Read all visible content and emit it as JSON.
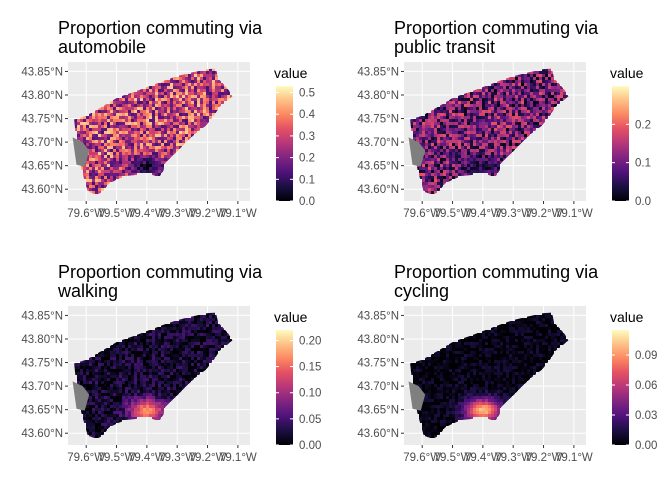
{
  "colors": {
    "panel_bg": "#EBEBEB",
    "grid": "#FFFFFF",
    "tick_text": "#4D4D4D",
    "title_text": "#000000",
    "na_gray": "#7F7F7F",
    "scale_low": "#000004",
    "scale_high": "#FCFDBF"
  },
  "chart_data": [
    {
      "type": "heatmap",
      "title": "Proportion commuting via\nautomobile",
      "legend_title": "value",
      "x_ticks": [
        "79.6°W",
        "79.5°W",
        "79.4°W",
        "79.3°W",
        "79.2°W",
        "79.1°W"
      ],
      "x_values": [
        -79.6,
        -79.5,
        -79.4,
        -79.3,
        -79.2,
        -79.1
      ],
      "y_ticks": [
        "43.85°N",
        "43.80°N",
        "43.75°N",
        "43.70°N",
        "43.65°N",
        "43.60°N"
      ],
      "y_values": [
        43.85,
        43.8,
        43.75,
        43.7,
        43.65,
        43.6
      ],
      "xlim": [
        -79.66,
        -79.06
      ],
      "ylim": [
        43.575,
        43.87
      ],
      "legend_labels": [
        "0.5",
        "0.4",
        "0.3",
        "0.2",
        "0.1",
        "0.0"
      ],
      "legend_values": [
        0.5,
        0.4,
        0.3,
        0.2,
        0.1,
        0.0
      ],
      "legend_range": [
        0.0,
        0.53
      ],
      "mean_value": 0.3,
      "spread": 0.18,
      "hotspot_value": 0.05
    },
    {
      "type": "heatmap",
      "title": "Proportion commuting via\npublic transit",
      "legend_title": "value",
      "x_ticks": [
        "79.6°W",
        "79.5°W",
        "79.4°W",
        "79.3°W",
        "79.2°W",
        "79.1°W"
      ],
      "x_values": [
        -79.6,
        -79.5,
        -79.4,
        -79.3,
        -79.2,
        -79.1
      ],
      "y_ticks": [
        "43.85°N",
        "43.80°N",
        "43.75°N",
        "43.70°N",
        "43.65°N",
        "43.60°N"
      ],
      "y_values": [
        43.85,
        43.8,
        43.75,
        43.7,
        43.65,
        43.6
      ],
      "xlim": [
        -79.66,
        -79.06
      ],
      "ylim": [
        43.575,
        43.87
      ],
      "legend_labels": [
        "0.2",
        "0.1",
        "0.0"
      ],
      "legend_values": [
        0.2,
        0.1,
        0.0
      ],
      "legend_range": [
        0.0,
        0.3
      ],
      "mean_value": 0.1,
      "spread": 0.09,
      "hotspot_value": 0.04
    },
    {
      "type": "heatmap",
      "title": "Proportion commuting via\nwalking",
      "legend_title": "value",
      "x_ticks": [
        "79.6°W",
        "79.5°W",
        "79.4°W",
        "79.3°W",
        "79.2°W",
        "79.1°W"
      ],
      "x_values": [
        -79.6,
        -79.5,
        -79.4,
        -79.3,
        -79.2,
        -79.1
      ],
      "y_ticks": [
        "43.85°N",
        "43.80°N",
        "43.75°N",
        "43.70°N",
        "43.65°N",
        "43.60°N"
      ],
      "y_values": [
        43.85,
        43.8,
        43.75,
        43.7,
        43.65,
        43.6
      ],
      "xlim": [
        -79.66,
        -79.06
      ],
      "ylim": [
        43.575,
        43.87
      ],
      "legend_labels": [
        "0.20",
        "0.15",
        "0.10",
        "0.05",
        "0.00"
      ],
      "legend_values": [
        0.2,
        0.15,
        0.1,
        0.05,
        0.0
      ],
      "legend_range": [
        0.0,
        0.22
      ],
      "mean_value": 0.02,
      "spread": 0.03,
      "hotspot_value": 0.17
    },
    {
      "type": "heatmap",
      "title": "Proportion commuting via\ncycling",
      "legend_title": "value",
      "x_ticks": [
        "79.6°W",
        "79.5°W",
        "79.4°W",
        "79.3°W",
        "79.2°W",
        "79.1°W"
      ],
      "x_values": [
        -79.6,
        -79.5,
        -79.4,
        -79.3,
        -79.2,
        -79.1
      ],
      "y_ticks": [
        "43.85°N",
        "43.80°N",
        "43.75°N",
        "43.70°N",
        "43.65°N",
        "43.60°N"
      ],
      "y_values": [
        43.85,
        43.8,
        43.75,
        43.7,
        43.65,
        43.6
      ],
      "xlim": [
        -79.66,
        -79.06
      ],
      "ylim": [
        43.575,
        43.87
      ],
      "legend_labels": [
        "0.09",
        "0.06",
        "0.03",
        "0.00"
      ],
      "legend_values": [
        0.09,
        0.06,
        0.03,
        0.0
      ],
      "legend_range": [
        0.0,
        0.115
      ],
      "mean_value": 0.004,
      "spread": 0.01,
      "hotspot_value": 0.1
    }
  ]
}
